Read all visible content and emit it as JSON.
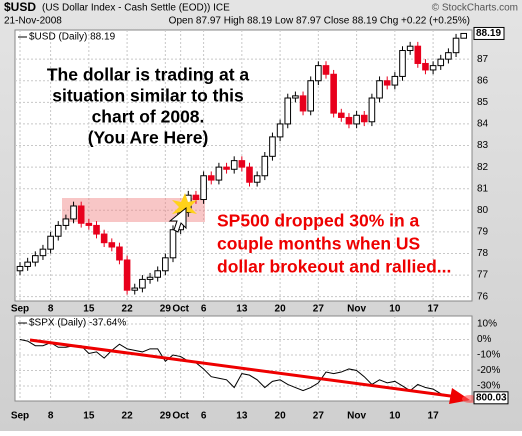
{
  "header": {
    "symbol": "$USD",
    "description": "(US Dollar Index - Cash Settle (EOD)) ICE",
    "source": "© StockCharts.com",
    "date": "21-Nov-2008",
    "quote": "Open 87.97 High 88.19 Low 87.97 Close 88.19 Chg +0.22 (+0.25%)"
  },
  "chart_data": [
    {
      "type": "candlestick",
      "legend": "$USD (Daily) 88.19",
      "price_tag": "88.19",
      "categories": [
        "Sep",
        null,
        null,
        null,
        "8",
        null,
        null,
        null,
        null,
        "15",
        null,
        null,
        null,
        null,
        "22",
        null,
        null,
        null,
        null,
        "29",
        null,
        "Oct",
        null,
        null,
        "6",
        null,
        null,
        null,
        null,
        "13",
        null,
        null,
        null,
        null,
        "20",
        null,
        null,
        null,
        null,
        "27",
        null,
        null,
        null,
        null,
        "Nov",
        null,
        null,
        null,
        null,
        "10",
        null,
        null,
        null,
        null,
        "17",
        null,
        null,
        null,
        null
      ],
      "open": [
        77.2,
        77.4,
        77.6,
        77.9,
        78.2,
        78.8,
        79.3,
        79.6,
        80.2,
        79.4,
        79.3,
        78.9,
        78.5,
        78.3,
        77.7,
        76.3,
        76.4,
        76.8,
        76.9,
        77.2,
        77.8,
        79.1,
        79.9,
        80.7,
        80.5,
        81.6,
        81.4,
        82.0,
        81.9,
        82.3,
        82.0,
        81.3,
        81.6,
        82.5,
        83.4,
        84.0,
        85.2,
        85.3,
        84.6,
        86.0,
        86.7,
        86.3,
        84.5,
        84.3,
        84.0,
        84.4,
        84.1,
        85.2,
        86.0,
        85.8,
        86.2,
        87.4,
        87.6,
        86.8,
        86.5,
        86.7,
        87.0,
        87.3,
        87.97
      ],
      "high": [
        77.6,
        77.8,
        78.1,
        78.4,
        79.0,
        79.5,
        79.8,
        80.4,
        80.4,
        79.6,
        79.5,
        79.1,
        78.7,
        78.5,
        77.9,
        76.6,
        77.0,
        77.1,
        77.4,
        78.0,
        79.3,
        80.1,
        80.9,
        80.9,
        81.8,
        81.8,
        82.2,
        82.2,
        82.5,
        82.5,
        82.2,
        81.8,
        82.7,
        83.6,
        84.2,
        85.4,
        85.5,
        85.5,
        86.2,
        86.9,
        86.9,
        86.5,
        84.7,
        84.5,
        84.6,
        84.6,
        85.4,
        86.2,
        86.2,
        86.4,
        87.6,
        87.8,
        87.8,
        87.0,
        86.9,
        87.2,
        87.5,
        88.17,
        88.19
      ],
      "low": [
        77.0,
        77.2,
        77.4,
        77.7,
        78.0,
        78.6,
        79.1,
        79.4,
        79.2,
        79.1,
        78.7,
        78.3,
        78.1,
        77.5,
        76.1,
        76.1,
        76.2,
        76.6,
        76.7,
        77.0,
        77.6,
        78.9,
        79.7,
        80.3,
        80.3,
        81.2,
        81.2,
        81.7,
        81.7,
        81.8,
        81.1,
        81.1,
        81.4,
        82.3,
        83.2,
        83.8,
        85.0,
        84.4,
        84.4,
        85.8,
        86.1,
        84.3,
        84.1,
        83.8,
        83.8,
        83.9,
        83.9,
        85.0,
        85.6,
        85.6,
        86.0,
        87.2,
        86.6,
        86.3,
        86.3,
        86.5,
        86.8,
        87.1,
        87.97
      ],
      "close": [
        77.4,
        77.6,
        77.9,
        78.2,
        78.8,
        79.3,
        79.6,
        80.2,
        79.4,
        79.3,
        78.9,
        78.5,
        78.3,
        77.7,
        76.3,
        76.4,
        76.8,
        76.9,
        77.2,
        77.8,
        79.1,
        79.9,
        80.7,
        80.5,
        81.6,
        81.4,
        82.0,
        81.9,
        82.3,
        82.0,
        81.3,
        81.6,
        82.5,
        83.4,
        84.0,
        85.2,
        85.3,
        84.6,
        86.0,
        86.7,
        86.3,
        84.5,
        84.3,
        84.0,
        84.4,
        84.1,
        85.2,
        86.0,
        85.8,
        86.2,
        87.4,
        87.6,
        86.8,
        86.5,
        86.7,
        87.0,
        87.3,
        87.97,
        88.19
      ],
      "up_color": "#000000",
      "down_color": "#e8001c",
      "ylim": [
        75.8,
        88.35
      ],
      "yticks": [
        76,
        77,
        78,
        79,
        80,
        81,
        82,
        83,
        84,
        85,
        86,
        87
      ],
      "grid": true,
      "annotations": [
        {
          "lines": [
            "The dollar is trading at a",
            "situation similar to this",
            "chart of 2008.",
            "(You Are Here)"
          ],
          "color": "#000000"
        },
        {
          "lines": [
            "SP500 dropped 30% in a",
            "couple months when US",
            "dollar brokeout and rallied..."
          ],
          "color": "#ee0000"
        }
      ]
    },
    {
      "type": "line",
      "legend": "$SPX (Daily) -37.64%",
      "price_tag": "800.03",
      "color": "#000000",
      "values": [
        0,
        -1,
        -4,
        -4,
        -2,
        -5,
        -5,
        -4,
        -4,
        -9,
        -8,
        -12,
        -7,
        -3,
        -6,
        -7,
        -8,
        -6,
        -6,
        -14,
        -10,
        -11,
        -14,
        -15,
        -19,
        -24,
        -25,
        -26,
        -31,
        -22,
        -23,
        -26,
        -31,
        -27,
        -26,
        -29,
        -31,
        -33,
        -31,
        -28,
        -21,
        -22,
        -21,
        -19,
        -20,
        -24,
        -29,
        -26,
        -28,
        -27,
        -30,
        -33,
        -29,
        -31,
        -32,
        -35,
        -36,
        -38,
        -37.64
      ],
      "ylim": [
        -39.7,
        15.2
      ],
      "yticks": [
        {
          "value": 10,
          "label": "10%"
        },
        {
          "value": 0,
          "label": "0%"
        },
        {
          "value": -10,
          "label": "-10%"
        },
        {
          "value": -20,
          "label": "-20%"
        },
        {
          "value": -30,
          "label": "-30%"
        }
      ],
      "grid": true
    }
  ]
}
